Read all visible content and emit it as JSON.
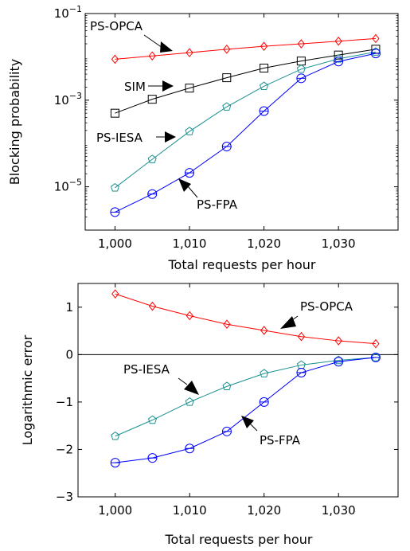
{
  "chart_data": [
    {
      "type": "line",
      "x": [
        1000,
        1005,
        1010,
        1015,
        1020,
        1025,
        1030,
        1035
      ],
      "xlabel": "Total requests per hour",
      "ylabel": "Blocking probability",
      "xlim": [
        996,
        1038
      ],
      "ylim": [
        1e-06,
        0.1
      ],
      "yscale": "log",
      "xticks": [
        1000,
        1010,
        1020,
        1030
      ],
      "xtick_labels": [
        "1,000",
        "1,010",
        "1,020",
        "1,030"
      ],
      "yticks": [
        1e-05,
        0.001,
        0.1
      ],
      "ytick_labels": [
        {
          "base": "10",
          "exp": "−5"
        },
        {
          "base": "10",
          "exp": "−3"
        },
        {
          "base": "10",
          "exp": "−1"
        }
      ],
      "grid": false,
      "series": [
        {
          "name": "PS-OPCA",
          "color": "#ff0000",
          "marker": "diamond",
          "values": [
            0.0088,
            0.0105,
            0.0125,
            0.015,
            0.0175,
            0.02,
            0.023,
            0.0265
          ]
        },
        {
          "name": "SIM",
          "color": "#000000",
          "marker": "square",
          "values": [
            0.0005,
            0.00105,
            0.0019,
            0.0033,
            0.0055,
            0.008,
            0.011,
            0.015
          ]
        },
        {
          "name": "PS-IESA",
          "color": "#1a9090",
          "marker": "pentagon",
          "values": [
            9.5e-06,
            4.3e-05,
            0.00019,
            0.0007,
            0.0021,
            0.0052,
            0.009,
            0.013
          ]
        },
        {
          "name": "PS-FPA",
          "color": "#0000ff",
          "marker": "circle",
          "values": [
            2.6e-06,
            6.8e-06,
            2.1e-05,
            8.5e-05,
            0.00056,
            0.0032,
            0.0078,
            0.012
          ]
        }
      ],
      "annotations": [
        {
          "text": "PS-OPCA",
          "series": "PS-OPCA",
          "x": 1014
        },
        {
          "text": "SIM",
          "series": "SIM",
          "x": 1007.6
        },
        {
          "text": "PS-IESA",
          "series": "PS-IESA",
          "x": 1007.2
        },
        {
          "text": "PS-FPA",
          "series": "PS-FPA",
          "x": 1008.4
        }
      ]
    },
    {
      "type": "line",
      "x": [
        1000,
        1005,
        1010,
        1015,
        1020,
        1025,
        1030,
        1035
      ],
      "xlabel": "Total requests per hour",
      "ylabel": "Logarithmic error",
      "xlim": [
        995,
        1038
      ],
      "ylim": [
        -3,
        1.5
      ],
      "xticks": [
        1000,
        1010,
        1020,
        1030
      ],
      "xtick_labels": [
        "1,000",
        "1,010",
        "1,020",
        "1,030"
      ],
      "yticks": [
        -3,
        -2,
        -1,
        0,
        1
      ],
      "ytick_labels": [
        "−3",
        "−2",
        "−1",
        "0",
        "1"
      ],
      "grid": false,
      "series": [
        {
          "name": "PS-OPCA",
          "color": "#ff0000",
          "marker": "diamond",
          "values": [
            1.28,
            1.02,
            0.82,
            0.64,
            0.51,
            0.38,
            0.29,
            0.23
          ]
        },
        {
          "name": "PS-IESA",
          "color": "#1a9090",
          "marker": "pentagon",
          "values": [
            -1.72,
            -1.38,
            -1.0,
            -0.67,
            -0.4,
            -0.22,
            -0.12,
            -0.06
          ]
        },
        {
          "name": "PS-FPA",
          "color": "#0000ff",
          "marker": "circle",
          "values": [
            -2.28,
            -2.18,
            -1.98,
            -1.62,
            -1.0,
            -0.38,
            -0.15,
            -0.06
          ]
        }
      ],
      "annotations": [
        {
          "text": "PS-OPCA",
          "series": "PS-OPCA",
          "x": 1021.5
        },
        {
          "text": "PS-IESA",
          "series": "PS-IESA",
          "x": 1012
        },
        {
          "text": "PS-FPA",
          "series": "PS-FPA",
          "x": 1020
        }
      ]
    }
  ]
}
